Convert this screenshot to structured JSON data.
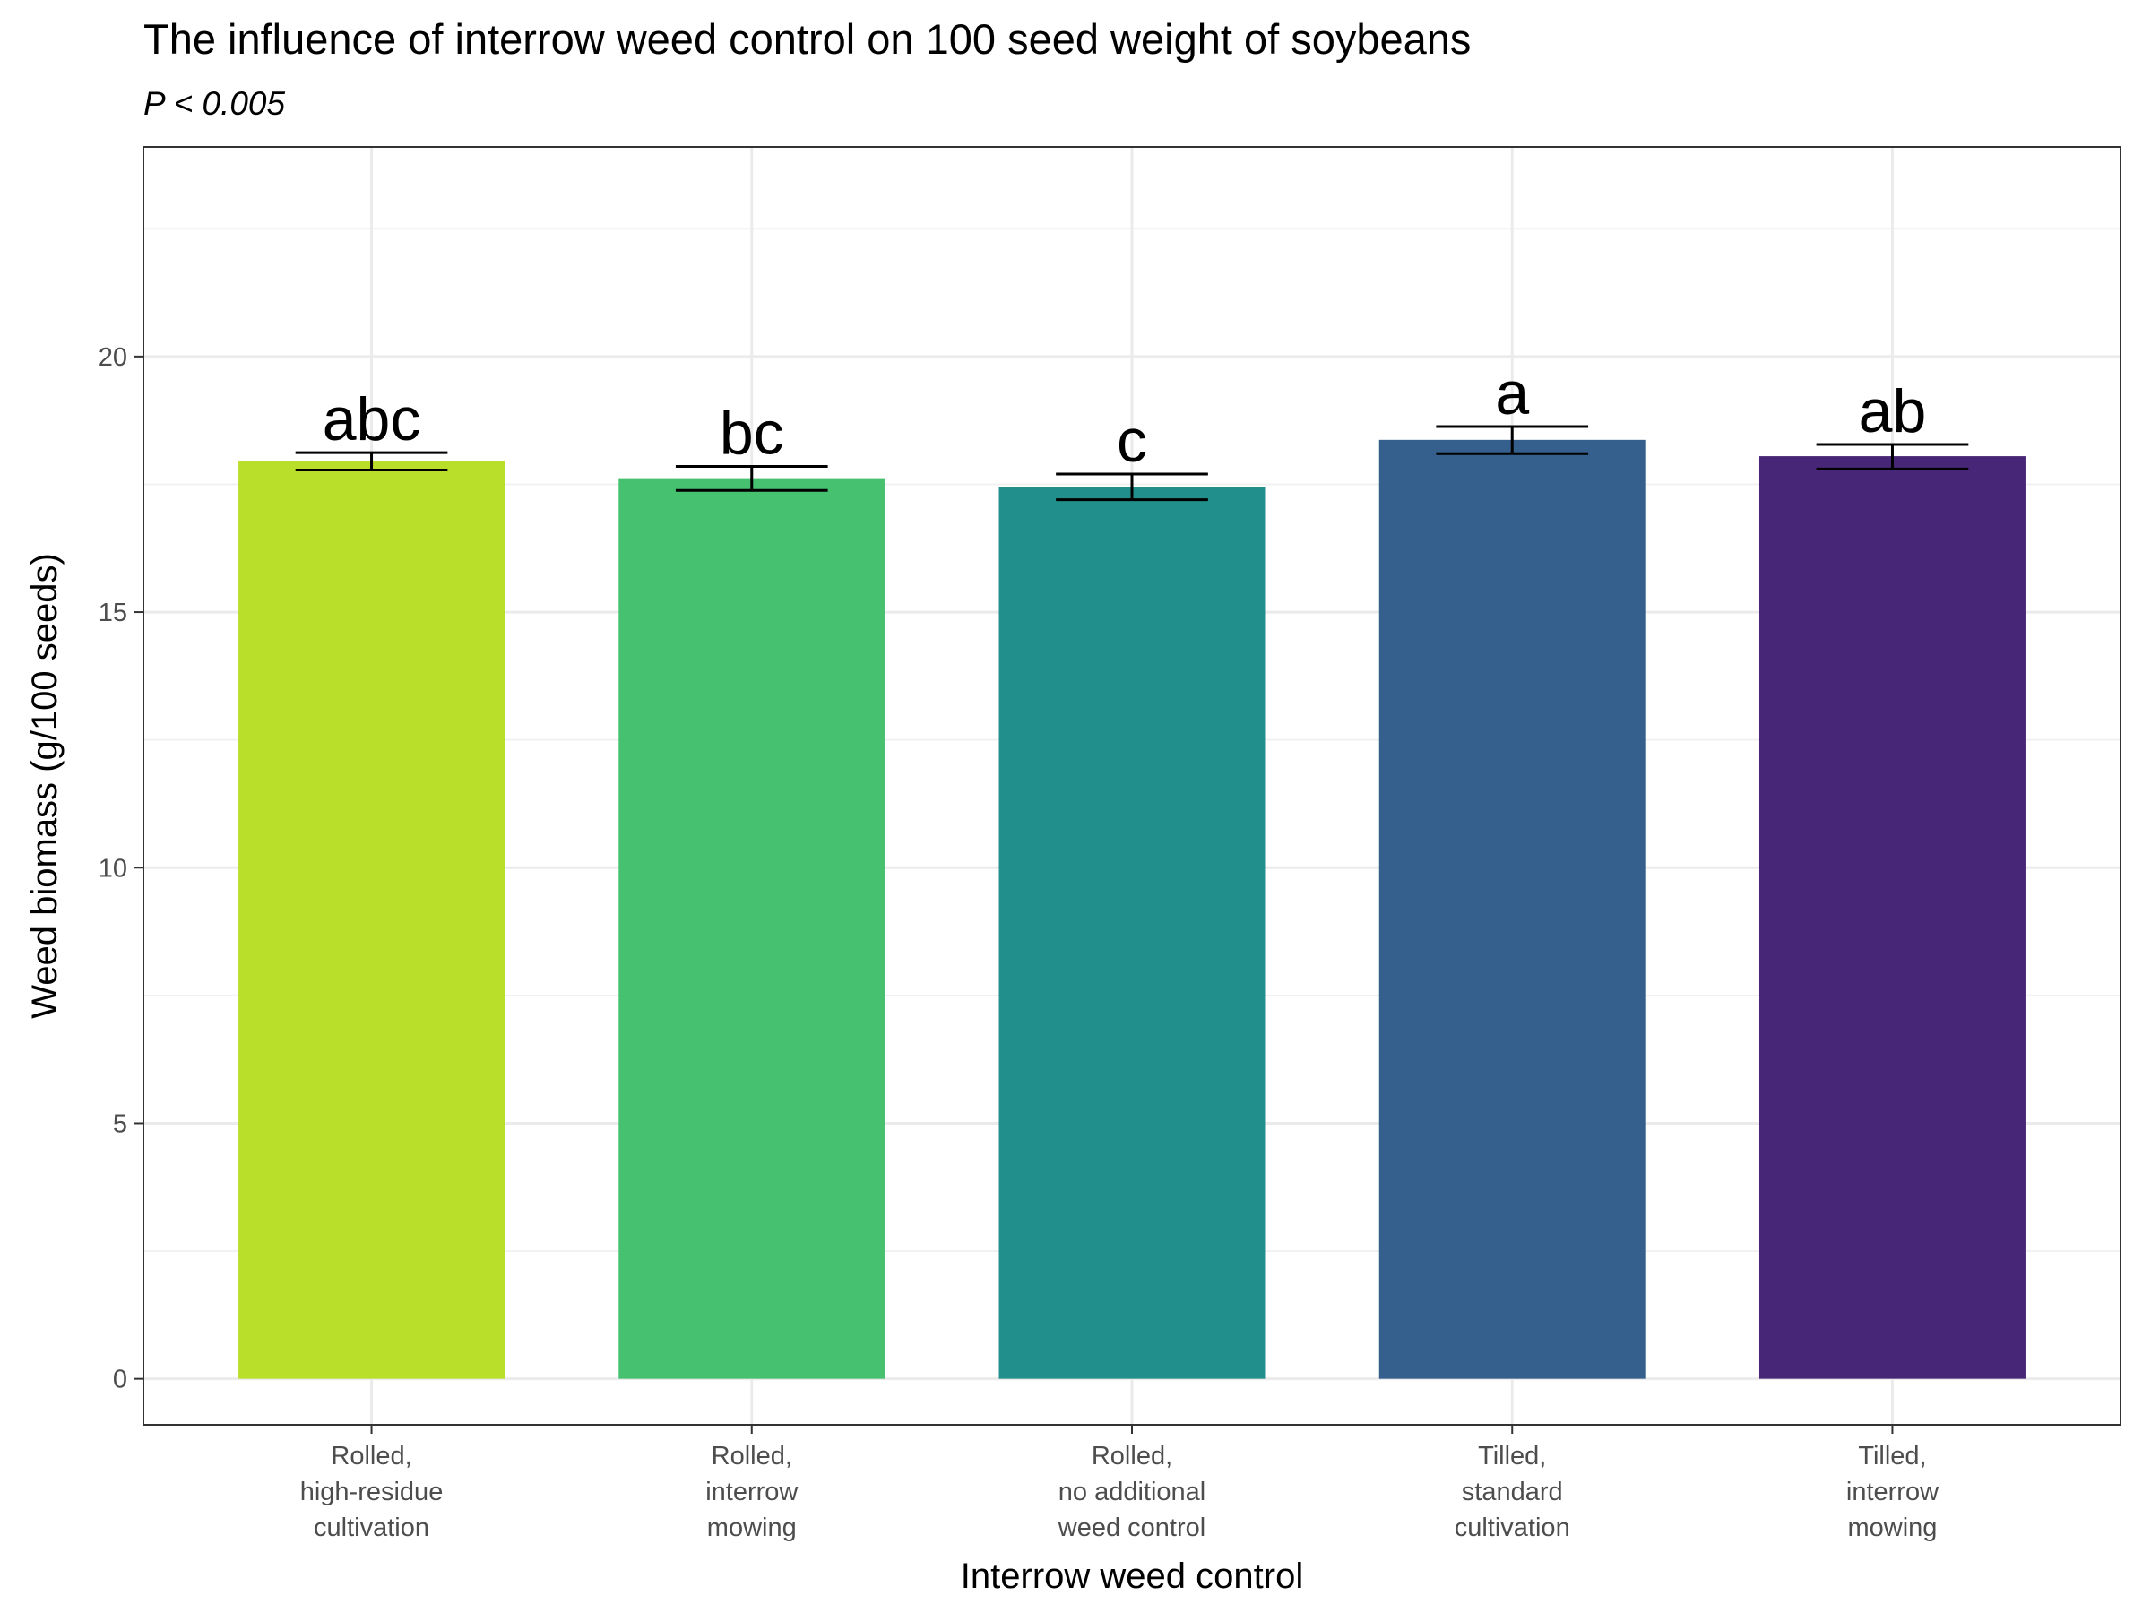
{
  "chart_data": {
    "type": "bar",
    "title": "The influence of interrow weed control on 100 seed weight of soybeans",
    "subtitle": "P < 0.005",
    "xlabel": "Interrow weed control",
    "ylabel": "Weed biomass (g/100 seeds)",
    "categories": [
      [
        "Rolled,",
        "high-residue",
        "cultivation"
      ],
      [
        "Rolled,",
        "interrow",
        "mowing"
      ],
      [
        "Rolled,",
        "no additional",
        "weed control"
      ],
      [
        "Tilled,",
        "standard",
        "cultivation"
      ],
      [
        "Tilled,",
        "interrow",
        "mowing"
      ]
    ],
    "values": [
      17.95,
      17.62,
      17.45,
      18.37,
      18.05
    ],
    "error_low": [
      17.78,
      17.38,
      17.2,
      18.1,
      17.8
    ],
    "error_high": [
      18.12,
      17.85,
      17.7,
      18.63,
      18.28
    ],
    "significance_labels": [
      "abc",
      "bc",
      "c",
      "a",
      "ab"
    ],
    "colors": [
      "#BADF2A",
      "#45C16F",
      "#21908C",
      "#35608D",
      "#482677"
    ],
    "ylim": [
      -0.9,
      24.1
    ],
    "yticks": [
      0,
      5,
      10,
      15,
      20
    ],
    "grid": true
  }
}
